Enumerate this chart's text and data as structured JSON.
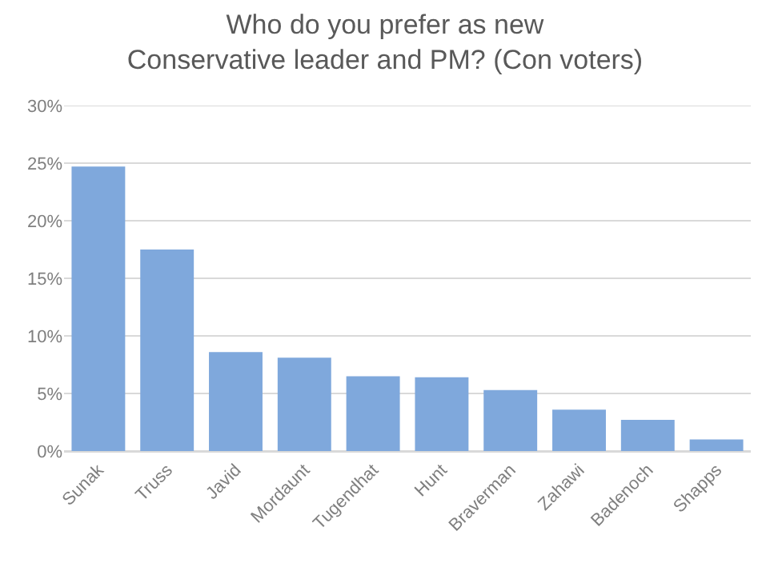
{
  "chart_data": {
    "type": "bar",
    "title": "Who do you prefer as new\nConservative leader and PM? (Con voters)",
    "categories": [
      "Sunak",
      "Truss",
      "Javid",
      "Mordaunt",
      "Tugendhat",
      "Hunt",
      "Braverman",
      "Zahawi",
      "Badenoch",
      "Shapps"
    ],
    "values": [
      24.7,
      17.5,
      8.6,
      8.1,
      6.5,
      6.4,
      5.3,
      3.6,
      2.7,
      1.0
    ],
    "color": "#7fa8dc",
    "ylim": [
      0,
      30
    ],
    "yticks": [
      {
        "value": 0,
        "label": "0%"
      },
      {
        "value": 5,
        "label": "5%"
      },
      {
        "value": 10,
        "label": "10%"
      },
      {
        "value": 15,
        "label": "15%"
      },
      {
        "value": 20,
        "label": "20%"
      },
      {
        "value": 25,
        "label": "25%"
      },
      {
        "value": 30,
        "label": "30%"
      }
    ],
    "grid": "y"
  }
}
